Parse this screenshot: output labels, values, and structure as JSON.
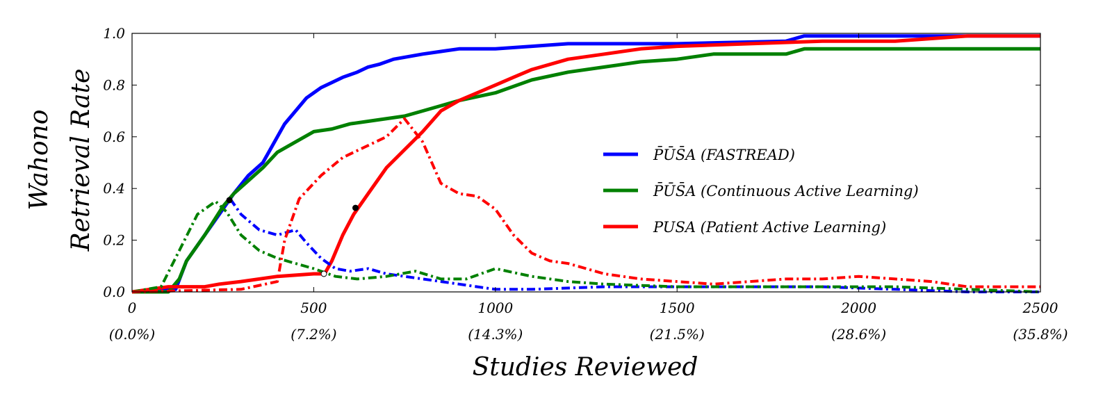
{
  "chart_data": {
    "type": "line",
    "title": "",
    "xlabel": "Studies Reviewed",
    "ylabel": [
      "Wahono",
      "Retrieval Rate"
    ],
    "xlim": [
      0,
      2500
    ],
    "ylim": [
      0,
      1.0
    ],
    "x_ticks": [
      0,
      500,
      1000,
      1500,
      2000,
      2500
    ],
    "x_tick_labels": [
      "0",
      "500",
      "1000",
      "1500",
      "2000",
      "2500"
    ],
    "x_tick_percent_labels": [
      "(0.0%)",
      "(7.2%)",
      "(14.3%)",
      "(21.5%)",
      "(28.6%)",
      "(35.8%)"
    ],
    "y_ticks": [
      0.0,
      0.2,
      0.4,
      0.6,
      0.8,
      1.0
    ],
    "y_tick_labels": [
      "0.0",
      "0.2",
      "0.4",
      "0.6",
      "0.8",
      "1.0"
    ],
    "grid": false,
    "legend_placement": "center-right",
    "series": [
      {
        "name": "P̄ŪS̄A (FASTREAD)",
        "color": "#0000ff",
        "style": "solid",
        "x": [
          0,
          120,
          150,
          200,
          250,
          280,
          320,
          360,
          380,
          400,
          420,
          450,
          480,
          500,
          520,
          550,
          580,
          600,
          620,
          650,
          680,
          720,
          800,
          900,
          1000,
          1100,
          1200,
          1500,
          1800,
          1850,
          2000,
          2300,
          2500
        ],
        "values": [
          0,
          0.01,
          0.12,
          0.22,
          0.32,
          0.38,
          0.45,
          0.5,
          0.55,
          0.6,
          0.65,
          0.7,
          0.75,
          0.77,
          0.79,
          0.81,
          0.83,
          0.84,
          0.85,
          0.87,
          0.88,
          0.9,
          0.92,
          0.94,
          0.94,
          0.95,
          0.96,
          0.96,
          0.97,
          0.99,
          0.99,
          0.99,
          0.99
        ]
      },
      {
        "name": "P̄ŪS̄A (Continuous Active Learning)",
        "color": "#008000",
        "style": "solid",
        "x": [
          0,
          100,
          130,
          150,
          200,
          250,
          280,
          320,
          360,
          400,
          450,
          500,
          550,
          600,
          650,
          750,
          800,
          900,
          1000,
          1100,
          1200,
          1300,
          1400,
          1500,
          1600,
          1700,
          1800,
          1850,
          2000,
          2500
        ],
        "values": [
          0,
          0,
          0.05,
          0.12,
          0.22,
          0.33,
          0.38,
          0.43,
          0.48,
          0.54,
          0.58,
          0.62,
          0.63,
          0.65,
          0.66,
          0.68,
          0.7,
          0.74,
          0.77,
          0.82,
          0.85,
          0.87,
          0.89,
          0.9,
          0.92,
          0.92,
          0.92,
          0.94,
          0.94,
          0.94
        ]
      },
      {
        "name": "PUSA (Patient Active Learning)",
        "color": "#ff0000",
        "style": "solid",
        "x": [
          0,
          100,
          200,
          240,
          300,
          400,
          500,
          530,
          550,
          580,
          610,
          650,
          700,
          750,
          800,
          850,
          900,
          950,
          1000,
          1050,
          1100,
          1200,
          1300,
          1400,
          1500,
          1700,
          1900,
          2100,
          2300,
          2500
        ],
        "values": [
          0,
          0.02,
          0.02,
          0.03,
          0.04,
          0.06,
          0.07,
          0.07,
          0.12,
          0.22,
          0.3,
          0.38,
          0.48,
          0.55,
          0.62,
          0.7,
          0.74,
          0.77,
          0.8,
          0.83,
          0.86,
          0.9,
          0.92,
          0.94,
          0.95,
          0.96,
          0.97,
          0.97,
          0.99,
          0.99
        ]
      },
      {
        "color": "#0000ff",
        "style": "dashdot",
        "x": [
          270,
          300,
          350,
          400,
          450,
          480,
          520,
          560,
          600,
          650,
          700,
          800,
          900,
          950,
          1000,
          1100,
          1300,
          1500,
          1700,
          1900,
          2100,
          2300,
          2500
        ],
        "values": [
          0.36,
          0.3,
          0.24,
          0.22,
          0.24,
          0.19,
          0.13,
          0.09,
          0.08,
          0.09,
          0.07,
          0.05,
          0.03,
          0.02,
          0.01,
          0.01,
          0.02,
          0.02,
          0.02,
          0.02,
          0.01,
          0.0,
          0.0
        ]
      },
      {
        "color": "#008000",
        "style": "dashdot",
        "x": [
          0,
          80,
          130,
          180,
          230,
          260,
          300,
          350,
          400,
          450,
          500,
          560,
          620,
          700,
          780,
          850,
          920,
          1000,
          1100,
          1200,
          1300,
          1500,
          1700,
          1900,
          2100,
          2300,
          2500
        ],
        "values": [
          0,
          0.02,
          0.16,
          0.3,
          0.35,
          0.31,
          0.22,
          0.16,
          0.13,
          0.11,
          0.09,
          0.06,
          0.05,
          0.06,
          0.08,
          0.05,
          0.05,
          0.09,
          0.06,
          0.04,
          0.03,
          0.02,
          0.02,
          0.02,
          0.02,
          0.01,
          0.0
        ]
      },
      {
        "color": "#ff0000",
        "style": "dashdot",
        "x": [
          0,
          300,
          400,
          420,
          460,
          520,
          580,
          640,
          700,
          750,
          800,
          850,
          900,
          950,
          1000,
          1050,
          1100,
          1150,
          1200,
          1300,
          1400,
          1500,
          1600,
          1700,
          1800,
          1900,
          2000,
          2100,
          2200,
          2300,
          2500
        ],
        "values": [
          0,
          0.01,
          0.04,
          0.2,
          0.36,
          0.45,
          0.52,
          0.56,
          0.6,
          0.67,
          0.58,
          0.42,
          0.38,
          0.37,
          0.32,
          0.22,
          0.15,
          0.12,
          0.11,
          0.07,
          0.05,
          0.04,
          0.03,
          0.04,
          0.05,
          0.05,
          0.06,
          0.05,
          0.04,
          0.02,
          0.02
        ]
      }
    ],
    "markers": [
      {
        "x": 268,
        "y": 0.355,
        "fill": "#000000"
      },
      {
        "x": 615,
        "y": 0.325,
        "fill": "#000000"
      },
      {
        "x": 528,
        "y": 0.07,
        "fill": "#ffffff"
      }
    ]
  }
}
